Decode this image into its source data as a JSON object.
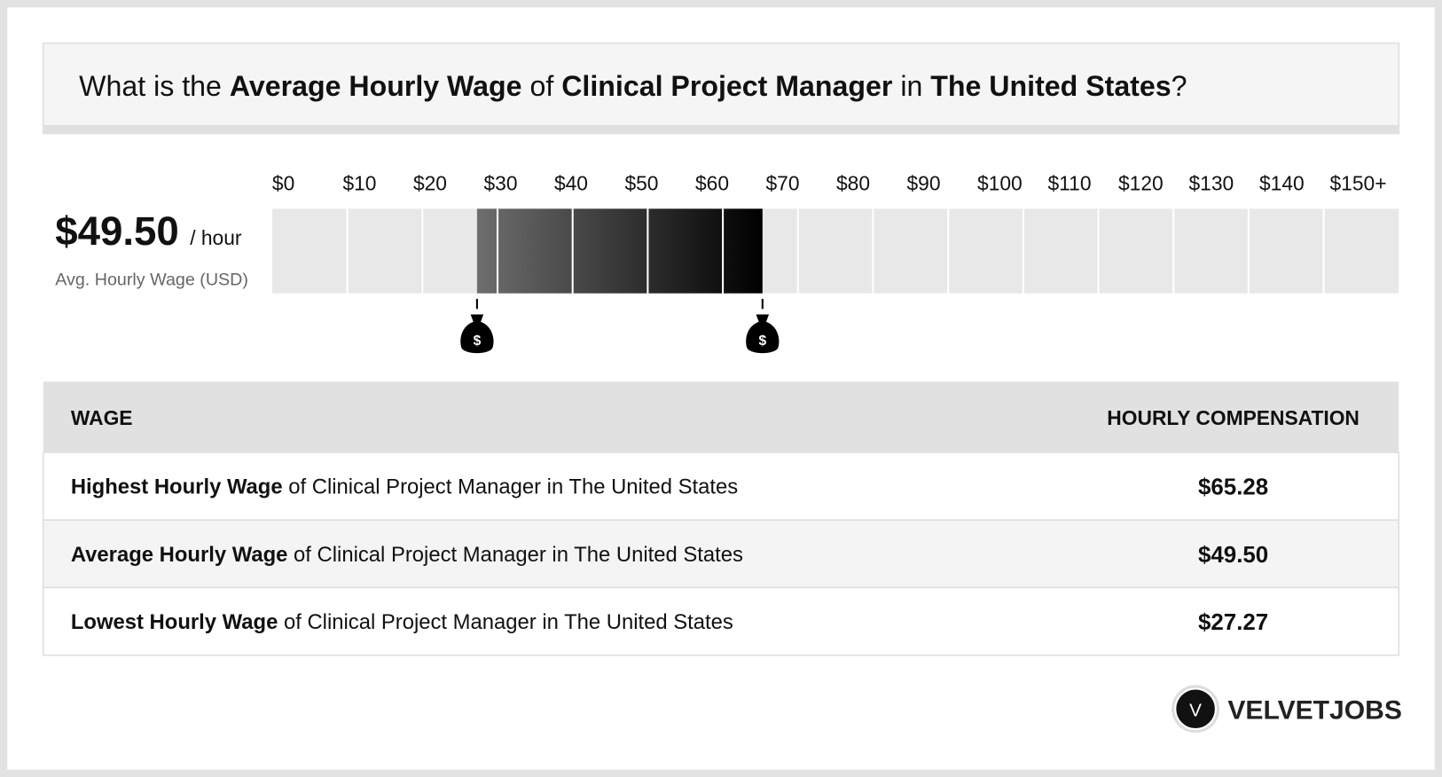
{
  "header": {
    "title_parts": [
      "What is the ",
      "Average Hourly Wage",
      " of ",
      "Clinical Project Manager",
      " in ",
      "The United States",
      "?"
    ]
  },
  "summary": {
    "value_label": "$49.50",
    "unit": "/ hour",
    "caption": "Avg. Hourly Wage (USD)"
  },
  "scale": {
    "xlim": [
      0,
      150
    ],
    "ticks": [
      {
        "value": 0,
        "label": "$0"
      },
      {
        "value": 10,
        "label": "$10"
      },
      {
        "value": 20,
        "label": "$20"
      },
      {
        "value": 30,
        "label": "$30"
      },
      {
        "value": 40,
        "label": "$40"
      },
      {
        "value": 50,
        "label": "$50"
      },
      {
        "value": 60,
        "label": "$60"
      },
      {
        "value": 70,
        "label": "$70"
      },
      {
        "value": 80,
        "label": "$80"
      },
      {
        "value": 90,
        "label": "$90"
      },
      {
        "value": 100,
        "label": "$100"
      },
      {
        "value": 110,
        "label": "$110"
      },
      {
        "value": 120,
        "label": "$120"
      },
      {
        "value": 130,
        "label": "$130"
      },
      {
        "value": 140,
        "label": "$140"
      },
      {
        "value": 150,
        "label": "$150+"
      }
    ],
    "low": 27.27,
    "high": 65.28,
    "marker_symbol": "$"
  },
  "table": {
    "columns": [
      "WAGE",
      "HOURLY COMPENSATION"
    ],
    "rows": [
      [
        "Highest Hourly Wage",
        " of Clinical Project Manager in The United States",
        "$65.28"
      ],
      [
        "Average Hourly Wage",
        " of Clinical Project Manager in The United States",
        "$49.50"
      ],
      [
        "Lowest Hourly Wage",
        " of Clinical Project Manager in The United States",
        "$27.27"
      ]
    ]
  },
  "brand": {
    "initial": "V",
    "name": "VELVETJOBS"
  }
}
